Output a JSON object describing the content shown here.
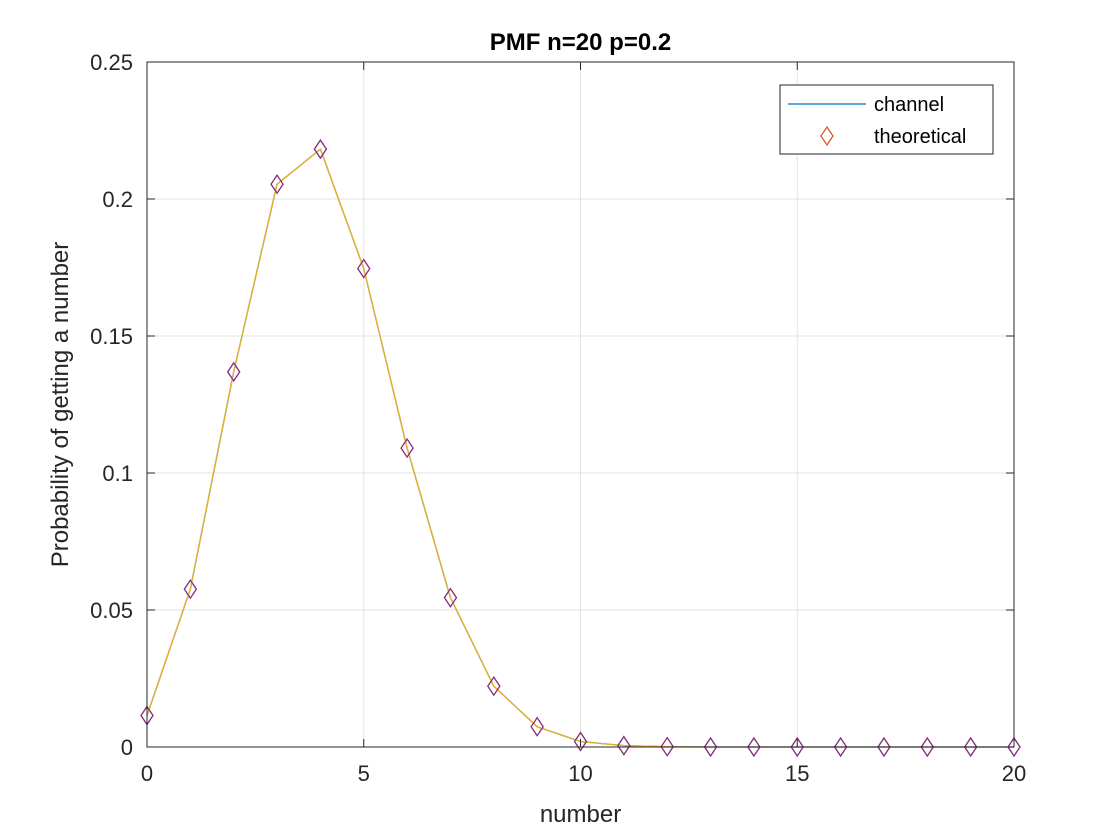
{
  "chart_data": {
    "type": "line",
    "title": "PMF n=20 p=0.2",
    "xlabel": "number",
    "ylabel": "Probability of getting a number",
    "xlim": [
      0,
      20
    ],
    "ylim": [
      0,
      0.25
    ],
    "xticks": [
      0,
      5,
      10,
      15,
      20
    ],
    "xtick_labels": [
      "0",
      "5",
      "10",
      "15",
      "20"
    ],
    "yticks": [
      0,
      0.05,
      0.1,
      0.15,
      0.2,
      0.25
    ],
    "ytick_labels": [
      "0",
      "0.05",
      "0.1",
      "0.15",
      "0.2",
      "0.25"
    ],
    "grid": true,
    "legend_position": "top-right",
    "legend": [
      "channel",
      "theoretical"
    ],
    "x": [
      0,
      1,
      2,
      3,
      4,
      5,
      6,
      7,
      8,
      9,
      10,
      11,
      12,
      13,
      14,
      15,
      16,
      17,
      18,
      19,
      20
    ],
    "series": [
      {
        "name": "channel",
        "style": "line",
        "color": "#0072BD",
        "values": [
          0.0115,
          0.0576,
          0.1369,
          0.2054,
          0.2182,
          0.1746,
          0.1091,
          0.0545,
          0.0222,
          0.0074,
          0.002,
          0.0005,
          0.0001,
          0.0,
          0.0,
          0.0,
          0.0,
          0.0,
          0.0,
          0.0,
          0.0
        ]
      },
      {
        "name": "theoretical",
        "style": "diamond-markers",
        "color": "#D95319",
        "values": [
          0.0115,
          0.0576,
          0.1369,
          0.2054,
          0.2182,
          0.1746,
          0.1091,
          0.0545,
          0.0222,
          0.0074,
          0.002,
          0.0005,
          0.0001,
          0.0,
          0.0,
          0.0,
          0.0,
          0.0,
          0.0,
          0.0,
          0.0
        ]
      },
      {
        "style": "line",
        "color": "#EDB120",
        "values": [
          0.0115,
          0.0576,
          0.1369,
          0.2054,
          0.2182,
          0.1746,
          0.1091,
          0.0545,
          0.0222,
          0.0074,
          0.002,
          0.0005,
          0.0001,
          0.0,
          0.0,
          0.0,
          0.0,
          0.0,
          0.0,
          0.0,
          0.0
        ]
      },
      {
        "style": "diamond-markers",
        "color": "#7E2F8E",
        "values": [
          0.0115,
          0.0576,
          0.1369,
          0.2054,
          0.2182,
          0.1746,
          0.1091,
          0.0545,
          0.0222,
          0.0074,
          0.002,
          0.0005,
          0.0001,
          0.0,
          0.0,
          0.0,
          0.0,
          0.0,
          0.0,
          0.0,
          0.0
        ]
      }
    ]
  }
}
